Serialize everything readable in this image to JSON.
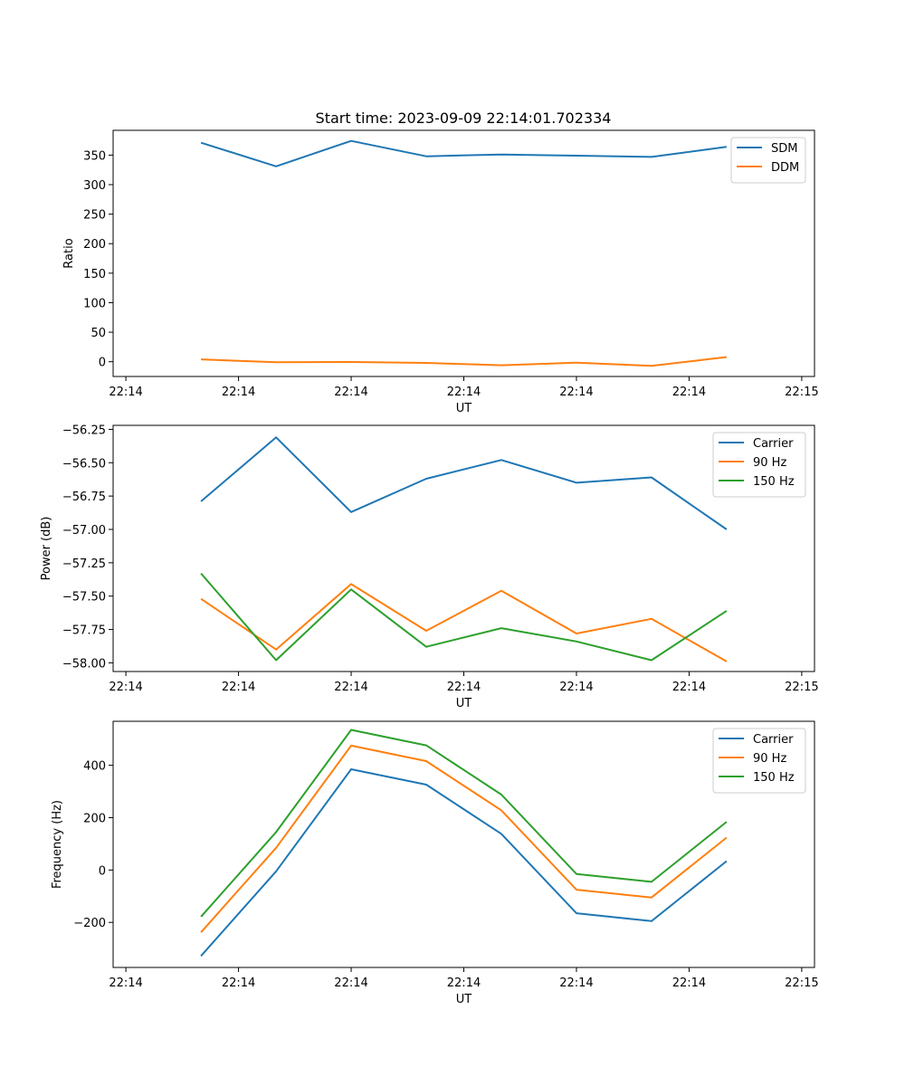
{
  "figure_title": "Start time: 2023-09-09 22:14:01.702334",
  "chart_data": [
    {
      "type": "line",
      "title": "Start time: 2023-09-09 22:14:01.702334",
      "xlabel": "UT",
      "ylabel": "Ratio",
      "x": [
        1,
        2,
        3,
        4,
        5,
        6,
        7,
        8
      ],
      "xlim": [
        -0.17,
        9.17
      ],
      "xticks": [
        0,
        1.5,
        3,
        4.5,
        6,
        7.5,
        9
      ],
      "xtick_labels": [
        "22:14",
        "22:14",
        "22:14",
        "22:14",
        "22:14",
        "22:14",
        "22:15"
      ],
      "ylim": [
        -25,
        392
      ],
      "yticks": [
        0,
        50,
        100,
        150,
        200,
        250,
        300,
        350
      ],
      "ytick_labels": [
        "0",
        "50",
        "100",
        "150",
        "200",
        "250",
        "300",
        "350"
      ],
      "legend_position": "upper-right",
      "series": [
        {
          "name": "SDM",
          "color": "#1f77b4",
          "values": [
            371,
            331,
            374,
            348,
            351,
            349,
            347,
            364
          ]
        },
        {
          "name": "DDM",
          "color": "#ff7f0e",
          "values": [
            4,
            -1,
            -0.5,
            -2,
            -6,
            -1.5,
            -7,
            8
          ]
        }
      ]
    },
    {
      "type": "line",
      "title": "",
      "xlabel": "UT",
      "ylabel": "Power (dB)",
      "x": [
        1,
        2,
        3,
        4,
        5,
        6,
        7,
        8
      ],
      "xlim": [
        -0.17,
        9.17
      ],
      "xticks": [
        0,
        1.5,
        3,
        4.5,
        6,
        7.5,
        9
      ],
      "xtick_labels": [
        "22:14",
        "22:14",
        "22:14",
        "22:14",
        "22:14",
        "22:14",
        "22:15"
      ],
      "ylim": [
        -58.065,
        -56.22
      ],
      "yticks": [
        -58.0,
        -57.75,
        -57.5,
        -57.25,
        -57.0,
        -56.75,
        -56.5,
        -56.25
      ],
      "ytick_labels": [
        "−58.00",
        "−57.75",
        "−57.50",
        "−57.25",
        "−57.00",
        "−56.75",
        "−56.50",
        "−56.25"
      ],
      "legend_position": "upper-right",
      "series": [
        {
          "name": "Carrier",
          "color": "#1f77b4",
          "values": [
            -56.79,
            -56.31,
            -56.87,
            -56.62,
            -56.48,
            -56.65,
            -56.61,
            -57.0
          ]
        },
        {
          "name": "90 Hz",
          "color": "#ff7f0e",
          "values": [
            -57.52,
            -57.9,
            -57.41,
            -57.76,
            -57.46,
            -57.78,
            -57.67,
            -57.99
          ]
        },
        {
          "name": "150 Hz",
          "color": "#2ca02c",
          "values": [
            -57.33,
            -57.98,
            -57.45,
            -57.88,
            -57.74,
            -57.84,
            -57.98,
            -57.61
          ]
        }
      ]
    },
    {
      "type": "line",
      "title": "",
      "xlabel": "UT",
      "ylabel": "Frequency (Hz)",
      "x": [
        1,
        2,
        3,
        4,
        5,
        6,
        7,
        8
      ],
      "xlim": [
        -0.17,
        9.17
      ],
      "xticks": [
        0,
        1.5,
        3,
        4.5,
        6,
        7.5,
        9
      ],
      "xtick_labels": [
        "22:14",
        "22:14",
        "22:14",
        "22:14",
        "22:14",
        "22:14",
        "22:15"
      ],
      "ylim": [
        -372,
        568
      ],
      "yticks": [
        -200,
        0,
        200,
        400
      ],
      "ytick_labels": [
        "−200",
        "0",
        "200",
        "400"
      ],
      "legend_position": "upper-right",
      "series": [
        {
          "name": "Carrier",
          "color": "#1f77b4",
          "values": [
            -328,
            -5,
            385,
            326,
            138,
            -165,
            -195,
            34
          ]
        },
        {
          "name": "90 Hz",
          "color": "#ff7f0e",
          "values": [
            -238,
            85,
            475,
            416,
            228,
            -75,
            -105,
            124
          ]
        },
        {
          "name": "150 Hz",
          "color": "#2ca02c",
          "values": [
            -178,
            145,
            535,
            476,
            288,
            -15,
            -45,
            184
          ]
        }
      ]
    }
  ]
}
